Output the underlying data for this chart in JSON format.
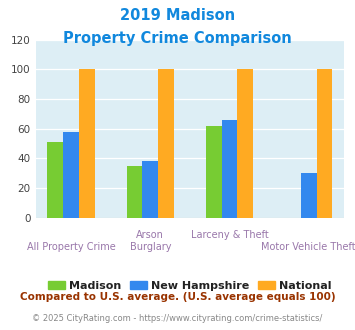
{
  "title_line1": "2019 Madison",
  "title_line2": "Property Crime Comparison",
  "madison_values": [
    51,
    35,
    62,
    0
  ],
  "nh_values": [
    58,
    38,
    66,
    30
  ],
  "national_values": [
    100,
    100,
    100,
    100
  ],
  "colors": {
    "Madison": "#77cc33",
    "New Hampshire": "#3388ee",
    "National": "#ffaa22"
  },
  "ylim": [
    0,
    120
  ],
  "yticks": [
    0,
    20,
    40,
    60,
    80,
    100,
    120
  ],
  "plot_bg": "#ddeef5",
  "title_color": "#1188dd",
  "axis_label_color_top": "#9977aa",
  "axis_label_color_bot": "#9977aa",
  "legend_label_color": "#222222",
  "footer_text": "Compared to U.S. average. (U.S. average equals 100)",
  "footer_color": "#993300",
  "credit_text": "© 2025 CityRating.com - https://www.cityrating.com/crime-statistics/",
  "credit_color": "#888888",
  "label_top": [
    "",
    "Arson",
    "Larceny & Theft",
    ""
  ],
  "label_bot": [
    "All Property Crime",
    "Burglary",
    "",
    "Motor Vehicle Theft"
  ]
}
